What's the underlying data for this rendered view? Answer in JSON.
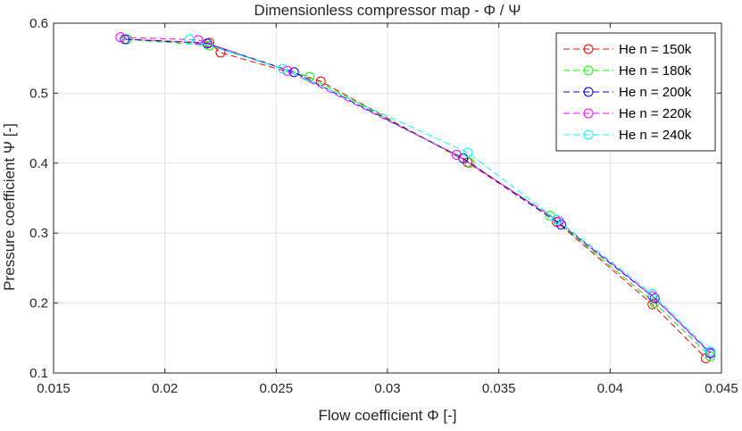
{
  "chart_data": {
    "type": "line",
    "title": "Dimensionless compressor map - Φ / Ψ",
    "xlabel": "Flow coefficient Φ [-]",
    "ylabel": "Pressure coefficient Ψ [-]",
    "xlim": [
      0.015,
      0.045
    ],
    "ylim": [
      0.1,
      0.6
    ],
    "xticks": [
      "0.015",
      "0.02",
      "0.025",
      "0.03",
      "0.035",
      "0.04",
      "0.045"
    ],
    "yticks": [
      "0.1",
      "0.2",
      "0.3",
      "0.4",
      "0.5",
      "0.6"
    ],
    "grid": true,
    "legend_position": "top-right",
    "series": [
      {
        "name": "He n = 150k",
        "color": "#ff0000",
        "x": [
          0.0183,
          0.022,
          0.0225,
          0.027,
          0.0336,
          0.0376,
          0.0419,
          0.0443
        ],
        "y": [
          0.577,
          0.572,
          0.558,
          0.517,
          0.401,
          0.316,
          0.198,
          0.121
        ]
      },
      {
        "name": "He n = 180k",
        "color": "#00ff00",
        "x": [
          0.0183,
          0.022,
          0.0265,
          0.0337,
          0.0373,
          0.042,
          0.0445
        ],
        "y": [
          0.577,
          0.568,
          0.523,
          0.4,
          0.325,
          0.2,
          0.124
        ]
      },
      {
        "name": "He n = 200k",
        "color": "#0000ff",
        "x": [
          0.0182,
          0.0219,
          0.0258,
          0.0334,
          0.0378,
          0.042,
          0.0445
        ],
        "y": [
          0.577,
          0.571,
          0.53,
          0.407,
          0.312,
          0.207,
          0.128
        ]
      },
      {
        "name": "He n = 220k",
        "color": "#ff00ff",
        "x": [
          0.018,
          0.0215,
          0.0255,
          0.0331,
          0.0377,
          0.0419,
          0.0445
        ],
        "y": [
          0.58,
          0.576,
          0.532,
          0.412,
          0.317,
          0.21,
          0.129
        ]
      },
      {
        "name": "He n = 240k",
        "color": "#00ffff",
        "x": [
          0.0211,
          0.0253,
          0.0336,
          0.0376,
          0.0419,
          0.0445
        ],
        "y": [
          0.577,
          0.535,
          0.415,
          0.319,
          0.213,
          0.131
        ]
      }
    ]
  }
}
